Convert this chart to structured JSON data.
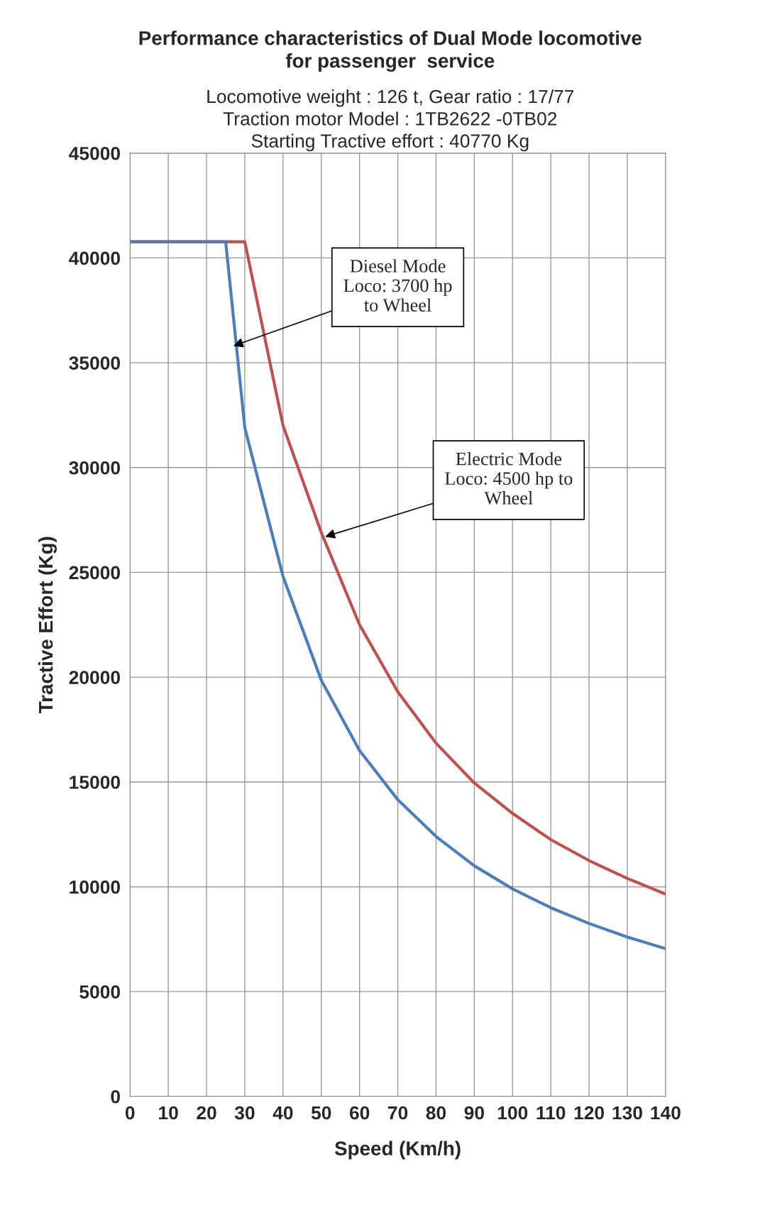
{
  "chart_data": {
    "type": "line",
    "title": "Performance characteristics of Dual Mode locomotive\nfor passenger  service",
    "subtitle": "Locomotive weight : 126 t, Gear ratio : 17/77\nTraction motor Model : 1TB2622 -0TB02\nStarting Tractive effort : 40770 Kg",
    "xlabel": "Speed (Km/h)",
    "ylabel": "Tractive Effort (Kg)",
    "series": [
      {
        "color": "#c0504d",
        "x": [
          0,
          30,
          40,
          50,
          60,
          70,
          80,
          90,
          100,
          110,
          120,
          130,
          140
        ],
        "values": [
          40770,
          40770,
          32000,
          26900,
          22500,
          19300,
          16850,
          14950,
          13500,
          12250,
          11250,
          10400,
          9650
        ]
      },
      {
        "color": "#4a7ebb",
        "x": [
          0,
          25,
          30,
          40,
          50,
          60,
          70,
          80,
          90,
          100,
          110,
          120,
          130,
          140
        ],
        "values": [
          40770,
          40770,
          31900,
          24800,
          19850,
          16500,
          14150,
          12400,
          11000,
          9900,
          9000,
          8250,
          7600,
          7050
        ]
      }
    ],
    "annotations": [
      {
        "text": "Diesel Mode\nLoco: 3700 hp\nto Wheel",
        "x": 27,
        "y": 35800
      },
      {
        "text": "Electric Mode\nLoco: 4500 hp to\nWheel",
        "x": 51,
        "y": 26700
      }
    ],
    "xlim": [
      0,
      140
    ],
    "xticks": [
      0,
      10,
      20,
      30,
      40,
      50,
      60,
      70,
      80,
      90,
      100,
      110,
      120,
      130,
      140
    ],
    "ylim": [
      0,
      45000
    ],
    "yticks": [
      0,
      5000,
      10000,
      15000,
      20000,
      25000,
      30000,
      35000,
      40000,
      45000
    ],
    "grid": true,
    "legend": false,
    "marker": "none",
    "line_style": "solid"
  }
}
